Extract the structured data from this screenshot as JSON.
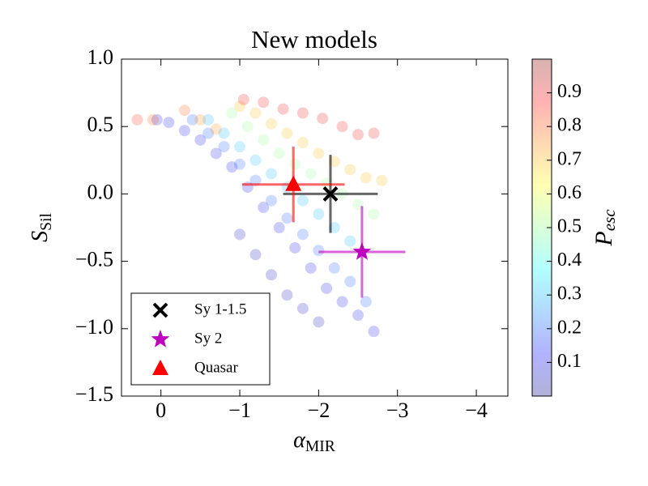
{
  "chart_data": {
    "type": "scatter",
    "title": "New models",
    "x_label": "α_MIR",
    "y_label": "S_Sil",
    "xlim": [
      0.5,
      -4.4
    ],
    "ylim": [
      -1.5,
      1.0
    ],
    "xticks": [
      0,
      {
        "value": -1,
        "label": "−1"
      },
      {
        "value": -2,
        "label": "−2"
      },
      {
        "value": -3,
        "label": "−3"
      },
      {
        "value": -4,
        "label": "−4"
      }
    ],
    "yticks": [
      {
        "value": 1.0,
        "label": "1.0"
      },
      0.5,
      {
        "value": 0.0,
        "label": "0.0"
      },
      {
        "value": -0.5,
        "label": "−0.5"
      },
      {
        "value": -1.0,
        "label": "−1.0"
      },
      {
        "value": -1.5,
        "label": "−1.5"
      }
    ],
    "colorbar": {
      "label": "P_esc",
      "lim": [
        0,
        1
      ],
      "ticks": [
        0.1,
        0.2,
        0.3,
        0.4,
        0.5,
        0.6,
        0.7,
        0.8,
        0.9
      ],
      "cmap": "jet"
    },
    "legend": "lower left",
    "models": {
      "x": [
        0.05,
        -0.1,
        -0.3,
        -0.5,
        -0.7,
        -0.9,
        -1.1,
        -1.3,
        -1.5,
        -1.7,
        -1.9,
        -2.1,
        -2.3,
        -2.5,
        -2.7,
        -1.0,
        -1.2,
        -1.4,
        -1.6,
        -1.8,
        -2.0,
        -0.4,
        -0.6,
        -0.8,
        -1.0,
        -1.2,
        -1.4,
        -1.6,
        -1.8,
        -2.0,
        -2.2,
        -2.4,
        -2.6,
        -0.6,
        -0.8,
        -1.0,
        -1.2,
        -1.4,
        -1.6,
        -1.8,
        -2.0,
        -2.2,
        -2.4,
        -0.9,
        -1.1,
        -1.3,
        -1.5,
        -1.7,
        -1.9,
        -2.1,
        -2.3,
        -2.5,
        -2.7,
        -1.0,
        -1.2,
        -1.4,
        -1.6,
        -1.8,
        -2.0,
        -2.2,
        -2.4,
        -2.6,
        -2.8,
        -1.05,
        -1.3,
        -1.55,
        -1.8,
        -2.05,
        -2.3,
        -2.5,
        -2.7,
        0.3,
        0.1,
        -0.3,
        -0.5,
        -0.7
      ],
      "values": [
        0.55,
        0.53,
        0.47,
        0.4,
        0.3,
        0.2,
        0.05,
        -0.1,
        -0.25,
        -0.4,
        -0.55,
        -0.7,
        -0.8,
        -0.9,
        -1.02,
        -0.3,
        -0.45,
        -0.6,
        -0.75,
        -0.85,
        -0.95,
        0.55,
        0.45,
        0.35,
        0.22,
        0.1,
        -0.05,
        -0.18,
        -0.3,
        -0.42,
        -0.55,
        -0.65,
        -0.8,
        0.55,
        0.45,
        0.35,
        0.25,
        0.15,
        0.05,
        -0.05,
        -0.15,
        -0.25,
        -0.35,
        0.6,
        0.5,
        0.4,
        0.3,
        0.22,
        0.15,
        0.08,
        0.0,
        -0.08,
        -0.15,
        0.65,
        0.6,
        0.52,
        0.45,
        0.38,
        0.3,
        0.24,
        0.18,
        0.12,
        0.1,
        0.7,
        0.68,
        0.63,
        0.6,
        0.56,
        0.5,
        0.44,
        0.45,
        0.55,
        0.55,
        0.62,
        0.55,
        0.48
      ],
      "p_esc": [
        0.1,
        0.1,
        0.1,
        0.1,
        0.1,
        0.1,
        0.1,
        0.1,
        0.1,
        0.1,
        0.1,
        0.1,
        0.1,
        0.1,
        0.1,
        0.05,
        0.05,
        0.05,
        0.05,
        0.05,
        0.05,
        0.2,
        0.2,
        0.2,
        0.2,
        0.2,
        0.2,
        0.2,
        0.2,
        0.2,
        0.2,
        0.2,
        0.2,
        0.3,
        0.3,
        0.3,
        0.3,
        0.3,
        0.3,
        0.3,
        0.3,
        0.3,
        0.3,
        0.5,
        0.5,
        0.5,
        0.5,
        0.5,
        0.5,
        0.5,
        0.5,
        0.5,
        0.5,
        0.7,
        0.7,
        0.7,
        0.7,
        0.7,
        0.7,
        0.7,
        0.7,
        0.7,
        0.7,
        0.9,
        0.9,
        0.9,
        0.9,
        0.9,
        0.9,
        0.9,
        0.9,
        0.85,
        0.8,
        0.8,
        0.75,
        0.75
      ]
    },
    "series": [
      {
        "name": "Sy 1-1.5",
        "color": "#000000",
        "marker": "x",
        "x": [
          -2.15
        ],
        "values": [
          0.0
        ],
        "xerr": [
          0.6
        ],
        "yerr": [
          0.29
        ]
      },
      {
        "name": "Sy 2",
        "color": "#bf00bf",
        "marker": "star",
        "x": [
          -2.55
        ],
        "values": [
          -0.43
        ],
        "xerr": [
          0.55
        ],
        "yerr": [
          0.34
        ]
      },
      {
        "name": "Quasar",
        "color": "#ff0000",
        "marker": "triangle",
        "x": [
          -1.68
        ],
        "values": [
          0.07
        ],
        "xerr": [
          0.65
        ],
        "yerr": [
          0.28
        ]
      }
    ]
  }
}
